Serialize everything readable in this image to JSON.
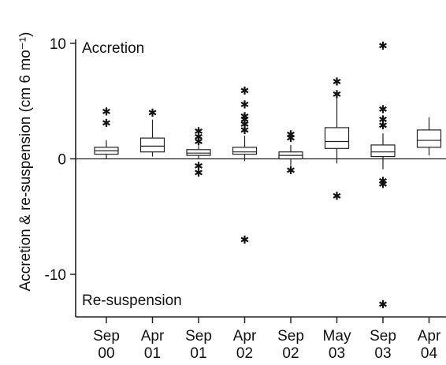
{
  "chart_data": {
    "type": "box",
    "ylabel": "Accretion & re-suspension (cm 6 mo⁻¹)",
    "ylim": [
      -14,
      10
    ],
    "yticks": [
      {
        "value": 10,
        "label": "10"
      },
      {
        "value": 0,
        "label": "0"
      },
      {
        "value": -10,
        "label": "-10"
      }
    ],
    "annotations": {
      "top": "Accretion",
      "bottom": "Re-suspension"
    },
    "reference_line": 0,
    "categories": [
      {
        "line1": "Sep",
        "line2": "00"
      },
      {
        "line1": "Apr",
        "line2": "01"
      },
      {
        "line1": "Sep",
        "line2": "01"
      },
      {
        "line1": "Apr",
        "line2": "02"
      },
      {
        "line1": "Sep",
        "line2": "02"
      },
      {
        "line1": "May",
        "line2": "03"
      },
      {
        "line1": "Sep",
        "line2": "03"
      },
      {
        "line1": "Apr",
        "line2": "04"
      }
    ],
    "boxes": [
      {
        "q1": 0.4,
        "median": 0.7,
        "q3": 1.0,
        "whisker_low": 0.0,
        "whisker_high": 1.6,
        "outliers": [
          4.1,
          3.1
        ]
      },
      {
        "q1": 0.6,
        "median": 1.1,
        "q3": 1.8,
        "whisker_low": 0.2,
        "whisker_high": 3.4,
        "outliers": [
          4.0
        ]
      },
      {
        "q1": 0.3,
        "median": 0.5,
        "q3": 0.8,
        "whisker_low": 0.0,
        "whisker_high": 1.1,
        "outliers": [
          2.4,
          1.9,
          1.5,
          -0.6,
          -1.2
        ]
      },
      {
        "q1": 0.4,
        "median": 0.6,
        "q3": 1.0,
        "whisker_low": -0.2,
        "whisker_high": 2.0,
        "outliers": [
          5.9,
          4.7,
          3.7,
          3.4,
          3.0,
          2.5,
          -7.0
        ]
      },
      {
        "q1": 0.0,
        "median": 0.3,
        "q3": 0.6,
        "whisker_low": -0.6,
        "whisker_high": 1.2,
        "outliers": [
          2.1,
          1.8,
          -1.0
        ]
      },
      {
        "q1": 0.9,
        "median": 1.5,
        "q3": 2.7,
        "whisker_low": -0.4,
        "whisker_high": 5.3,
        "outliers": [
          6.7,
          5.6,
          -3.2
        ]
      },
      {
        "q1": 0.2,
        "median": 0.6,
        "q3": 1.2,
        "whisker_low": -0.9,
        "whisker_high": 2.2,
        "outliers": [
          9.8,
          4.3,
          3.4,
          2.9,
          -1.9,
          -2.2,
          -12.6
        ]
      },
      {
        "q1": 1.0,
        "median": 1.6,
        "q3": 2.5,
        "whisker_low": 0.3,
        "whisker_high": 3.6,
        "outliers": []
      }
    ]
  }
}
